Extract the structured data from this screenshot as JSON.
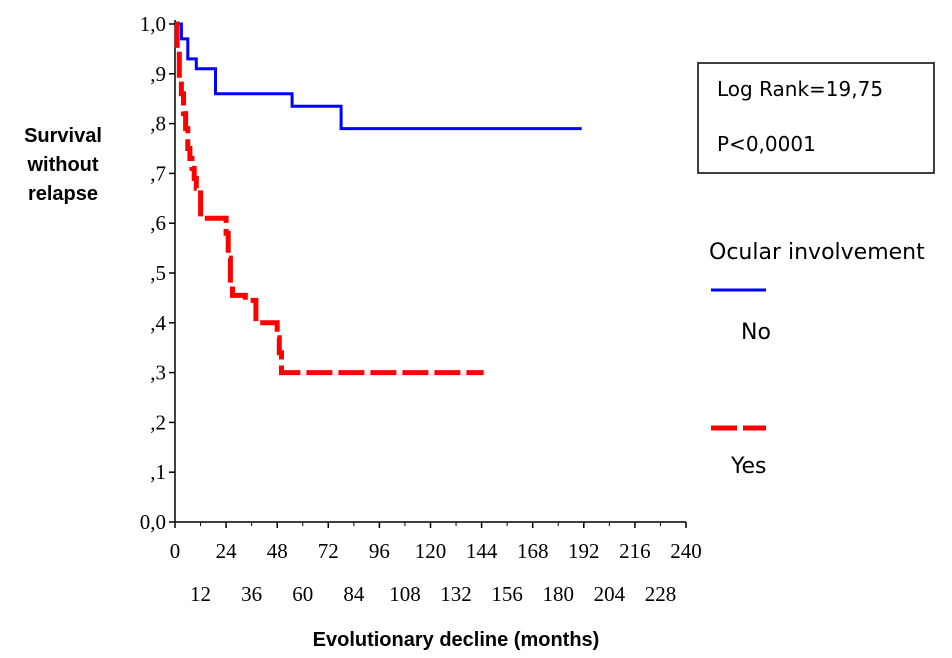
{
  "chart_data": {
    "type": "line",
    "ylabel": [
      "Survival",
      "without",
      "relapse"
    ],
    "xlabel": "Evolutionary decline (months)",
    "xlim": [
      0,
      240
    ],
    "ylim": [
      0,
      1
    ],
    "x_ticks_upper": [
      "0",
      "24",
      "48",
      "72",
      "96",
      "120",
      "144",
      "168",
      "192",
      "216",
      "240"
    ],
    "x_ticks_lower": [
      "12",
      "36",
      "60",
      "84",
      "108",
      "132",
      "156",
      "180",
      "204",
      "228"
    ],
    "y_ticks": [
      "0,0",
      ",1",
      ",2",
      ",3",
      ",4",
      ",5",
      ",6",
      ",7",
      ",8",
      ",9",
      "1,0"
    ],
    "series": [
      {
        "name": "No",
        "color": "#0000ff",
        "style": "solid",
        "steps": [
          [
            0,
            1.0
          ],
          [
            3,
            0.97
          ],
          [
            6,
            0.93
          ],
          [
            10,
            0.91
          ],
          [
            19,
            0.86
          ],
          [
            45,
            0.86
          ],
          [
            55,
            0.835
          ],
          [
            78,
            0.79
          ],
          [
            191,
            0.79
          ]
        ]
      },
      {
        "name": "Yes",
        "color": "#ff0000",
        "style": "dashed",
        "steps": [
          [
            0,
            1.0
          ],
          [
            1,
            0.95
          ],
          [
            2,
            0.89
          ],
          [
            3,
            0.86
          ],
          [
            4,
            0.82
          ],
          [
            5,
            0.79
          ],
          [
            6,
            0.75
          ],
          [
            7,
            0.73
          ],
          [
            8,
            0.71
          ],
          [
            9,
            0.69
          ],
          [
            10,
            0.67
          ],
          [
            12,
            0.61
          ],
          [
            24,
            0.58
          ],
          [
            25,
            0.53
          ],
          [
            26,
            0.48
          ],
          [
            27,
            0.455
          ],
          [
            33,
            0.445
          ],
          [
            38,
            0.4
          ],
          [
            48,
            0.37
          ],
          [
            49,
            0.34
          ],
          [
            50,
            0.3
          ],
          [
            145,
            0.3
          ]
        ]
      }
    ],
    "stats": {
      "line1": "Log Rank=19,75",
      "line2": "P<0,0001"
    },
    "legend": {
      "title": "Ocular involvement",
      "no_label": "No",
      "yes_label": "Yes"
    }
  }
}
